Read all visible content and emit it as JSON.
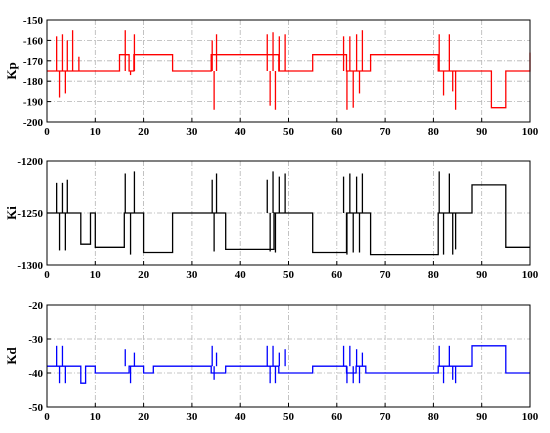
{
  "chart_data": [
    {
      "type": "line",
      "ylabel": "Kp",
      "color": "#ff0000",
      "xlim": [
        0,
        100
      ],
      "ylim": [
        -200,
        -150
      ],
      "x_ticks": [
        0,
        10,
        20,
        30,
        40,
        50,
        60,
        70,
        80,
        90,
        100
      ],
      "y_ticks": [
        -150,
        -160,
        -170,
        -180,
        -190,
        -200
      ],
      "grid": true,
      "baseline": -175,
      "segments": [
        [
          0,
          -175
        ],
        [
          2,
          -175
        ],
        [
          5,
          -175
        ],
        [
          8,
          -175
        ],
        [
          10,
          -175
        ],
        [
          15,
          -167
        ],
        [
          17,
          -175
        ],
        [
          18,
          -167
        ],
        [
          20,
          -167
        ],
        [
          26,
          -175
        ],
        [
          33,
          -175
        ],
        [
          34,
          -167
        ],
        [
          37,
          -167
        ],
        [
          45,
          -167
        ],
        [
          48,
          -175
        ],
        [
          55,
          -167
        ],
        [
          61,
          -167
        ],
        [
          62,
          -175
        ],
        [
          64,
          -175
        ],
        [
          67,
          -167
        ],
        [
          80,
          -167
        ],
        [
          81,
          -175
        ],
        [
          86,
          -175
        ],
        [
          92,
          -193
        ],
        [
          95,
          -175
        ],
        [
          100,
          -166
        ]
      ],
      "spikes": [
        [
          2,
          -158
        ],
        [
          2.6,
          -188
        ],
        [
          3.2,
          -157
        ],
        [
          3.8,
          -186
        ],
        [
          4.2,
          -160
        ],
        [
          5.3,
          -155
        ],
        [
          6.6,
          -168
        ],
        [
          16.2,
          -155
        ],
        [
          17.3,
          -177
        ],
        [
          18.1,
          -157
        ],
        [
          34.2,
          -160
        ],
        [
          34.6,
          -194
        ],
        [
          35.1,
          -157
        ],
        [
          45.6,
          -157
        ],
        [
          46.2,
          -192
        ],
        [
          46.8,
          -156
        ],
        [
          47.3,
          -194
        ],
        [
          48.1,
          -158
        ],
        [
          49.3,
          -157
        ],
        [
          61.4,
          -158
        ],
        [
          62.1,
          -194
        ],
        [
          62.7,
          -158
        ],
        [
          63.4,
          -193
        ],
        [
          64.1,
          -157
        ],
        [
          64.7,
          -186
        ],
        [
          65.3,
          -155
        ],
        [
          81.2,
          -157
        ],
        [
          82.1,
          -187
        ],
        [
          83.3,
          -157
        ],
        [
          84.0,
          -185
        ],
        [
          84.6,
          -194
        ]
      ]
    },
    {
      "type": "line",
      "ylabel": "Ki",
      "color": "#000000",
      "xlim": [
        0,
        100
      ],
      "ylim": [
        -1300,
        -1200
      ],
      "x_ticks": [
        0,
        10,
        20,
        30,
        40,
        50,
        60,
        70,
        80,
        90,
        100
      ],
      "y_ticks": [
        -1200,
        -1250,
        -1300
      ],
      "grid": true,
      "baseline": -1250,
      "segments": [
        [
          0,
          -1250
        ],
        [
          2,
          -1250
        ],
        [
          5,
          -1250
        ],
        [
          7,
          -1280
        ],
        [
          9,
          -1250
        ],
        [
          10,
          -1283
        ],
        [
          15,
          -1283
        ],
        [
          16,
          -1250
        ],
        [
          18,
          -1250
        ],
        [
          20,
          -1288
        ],
        [
          26,
          -1250
        ],
        [
          33,
          -1250
        ],
        [
          35,
          -1250
        ],
        [
          37,
          -1285
        ],
        [
          45,
          -1285
        ],
        [
          47,
          -1250
        ],
        [
          55,
          -1288
        ],
        [
          61,
          -1288
        ],
        [
          62,
          -1250
        ],
        [
          65,
          -1250
        ],
        [
          67,
          -1290
        ],
        [
          80,
          -1290
        ],
        [
          81,
          -1250
        ],
        [
          87,
          -1250
        ],
        [
          88,
          -1223
        ],
        [
          92,
          -1223
        ],
        [
          95,
          -1283
        ],
        [
          100,
          -1283
        ]
      ],
      "spikes": [
        [
          2,
          -1221
        ],
        [
          2.6,
          -1286
        ],
        [
          3.2,
          -1221
        ],
        [
          3.8,
          -1286
        ],
        [
          4.2,
          -1218
        ],
        [
          16.2,
          -1212
        ],
        [
          17.3,
          -1290
        ],
        [
          18.1,
          -1210
        ],
        [
          34.2,
          -1218
        ],
        [
          34.6,
          -1287
        ],
        [
          35.1,
          -1212
        ],
        [
          45.6,
          -1218
        ],
        [
          46.2,
          -1287
        ],
        [
          46.8,
          -1210
        ],
        [
          47.3,
          -1288
        ],
        [
          48.1,
          -1215
        ],
        [
          49.3,
          -1212
        ],
        [
          61.4,
          -1215
        ],
        [
          62.1,
          -1290
        ],
        [
          62.7,
          -1212
        ],
        [
          63.4,
          -1288
        ],
        [
          64.1,
          -1215
        ],
        [
          64.7,
          -1288
        ],
        [
          65.3,
          -1212
        ],
        [
          81.2,
          -1210
        ],
        [
          82.1,
          -1290
        ],
        [
          83.3,
          -1212
        ],
        [
          84.0,
          -1290
        ],
        [
          84.6,
          -1285
        ]
      ]
    },
    {
      "type": "line",
      "ylabel": "Kd",
      "color": "#0000ff",
      "xlim": [
        0,
        100
      ],
      "ylim": [
        -50,
        -20
      ],
      "x_ticks": [
        0,
        10,
        20,
        30,
        40,
        50,
        60,
        70,
        80,
        90,
        100
      ],
      "y_ticks": [
        -20,
        -30,
        -40,
        -50
      ],
      "grid": true,
      "baseline": -38,
      "segments": [
        [
          0,
          -38
        ],
        [
          2,
          -38
        ],
        [
          5,
          -38
        ],
        [
          7,
          -43
        ],
        [
          8,
          -38
        ],
        [
          10,
          -40
        ],
        [
          15,
          -40
        ],
        [
          17,
          -38
        ],
        [
          20,
          -40
        ],
        [
          22,
          -38
        ],
        [
          33,
          -38
        ],
        [
          34,
          -40
        ],
        [
          37,
          -38
        ],
        [
          45,
          -38
        ],
        [
          48,
          -40
        ],
        [
          55,
          -38
        ],
        [
          61,
          -38
        ],
        [
          62,
          -40
        ],
        [
          64,
          -38
        ],
        [
          66,
          -40
        ],
        [
          80,
          -40
        ],
        [
          81,
          -38
        ],
        [
          87,
          -38
        ],
        [
          88,
          -32
        ],
        [
          92,
          -32
        ],
        [
          95,
          -40
        ],
        [
          100,
          -40
        ]
      ],
      "spikes": [
        [
          2,
          -32
        ],
        [
          2.6,
          -43
        ],
        [
          3.2,
          -32
        ],
        [
          3.8,
          -43
        ],
        [
          16.2,
          -33
        ],
        [
          17.3,
          -43
        ],
        [
          18.1,
          -34
        ],
        [
          34.2,
          -32
        ],
        [
          34.6,
          -42
        ],
        [
          35.1,
          -34
        ],
        [
          45.6,
          -32
        ],
        [
          46.2,
          -43
        ],
        [
          46.8,
          -32
        ],
        [
          47.3,
          -43
        ],
        [
          48.1,
          -34
        ],
        [
          49.3,
          -33
        ],
        [
          61.4,
          -32
        ],
        [
          62.1,
          -43
        ],
        [
          62.7,
          -32
        ],
        [
          63.4,
          -43
        ],
        [
          64.1,
          -33
        ],
        [
          64.7,
          -43
        ],
        [
          65.3,
          -34
        ],
        [
          81.2,
          -32
        ],
        [
          82.1,
          -43
        ],
        [
          83.3,
          -32
        ],
        [
          84.0,
          -42
        ],
        [
          84.6,
          -43
        ]
      ]
    }
  ]
}
